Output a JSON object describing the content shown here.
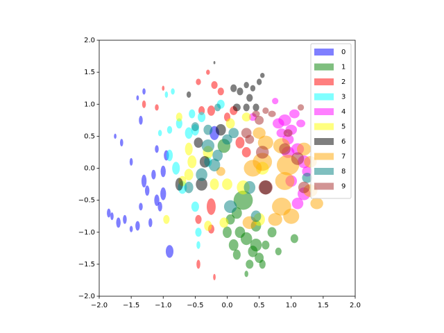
{
  "chart_data": {
    "type": "scatter",
    "alpha": 0.5,
    "legend": "upper right",
    "xlim": [
      -2,
      2
    ],
    "ylim": [
      -2,
      2
    ],
    "xticks": [
      {
        "value": -2,
        "label": "−2.0"
      },
      {
        "value": -1.5,
        "label": "−1.5"
      },
      {
        "value": -1,
        "label": "−1.0"
      },
      {
        "value": -0.5,
        "label": "−0.5"
      },
      {
        "value": 0,
        "label": "0.0"
      },
      {
        "value": 0.5,
        "label": "0.5"
      },
      {
        "value": 1,
        "label": "1.0"
      },
      {
        "value": 1.5,
        "label": "1.5"
      },
      {
        "value": 2,
        "label": "2.0"
      }
    ],
    "yticks": [
      {
        "value": -2,
        "label": "−2.0"
      },
      {
        "value": -1.5,
        "label": "−1.5"
      },
      {
        "value": -1,
        "label": "−1.0"
      },
      {
        "value": -0.5,
        "label": "−0.5"
      },
      {
        "value": 0,
        "label": "0.0"
      },
      {
        "value": 0.5,
        "label": "0.5"
      },
      {
        "value": 1,
        "label": "1.0"
      },
      {
        "value": 1.5,
        "label": "1.5"
      },
      {
        "value": 2,
        "label": "2.0"
      }
    ],
    "series": [
      {
        "name": "0",
        "color": "#0000ff",
        "x": [
          -1.85,
          -1.8,
          -1.7,
          -1.6,
          -1.5,
          -1.4,
          -1.35,
          -1.3,
          -1.25,
          -1.2,
          -1.1,
          -1.05,
          -1.0,
          -0.9,
          -1.1,
          -1.0,
          -1.35,
          -1.4,
          -1.3,
          -0.2,
          -1.65,
          -1.75,
          -1.5,
          -0.95,
          -1.15
        ],
        "y": [
          -0.7,
          -0.75,
          -0.85,
          -0.8,
          -0.95,
          -0.9,
          -0.6,
          -0.2,
          -0.35,
          -0.85,
          -0.5,
          -0.6,
          -0.4,
          -1.3,
          0.3,
          -0.05,
          0.75,
          1.1,
          1.2,
          0.55,
          0.4,
          0.5,
          0.1,
          0.2,
          -0.1
        ],
        "widths": [
          0.06,
          0.05,
          0.07,
          0.06,
          0.05,
          0.07,
          0.06,
          0.08,
          0.07,
          0.06,
          0.08,
          0.07,
          0.09,
          0.12,
          0.06,
          0.08,
          0.06,
          0.04,
          0.05,
          0.15,
          0.05,
          0.04,
          0.05,
          0.08,
          0.07
        ],
        "heights": [
          0.14,
          0.12,
          0.16,
          0.14,
          0.1,
          0.15,
          0.12,
          0.2,
          0.16,
          0.14,
          0.18,
          0.15,
          0.2,
          0.2,
          0.12,
          0.18,
          0.14,
          0.08,
          0.1,
          0.22,
          0.12,
          0.08,
          0.12,
          0.16,
          0.15
        ]
      },
      {
        "name": "1",
        "color": "#008000",
        "x": [
          0.3,
          0.2,
          0.4,
          0.5,
          0.35,
          0.15,
          0.05,
          0.1,
          0.6,
          0.7,
          0.8,
          1.05,
          0.45,
          0.25,
          -0.05,
          0.3,
          0.55,
          0.15,
          0.0,
          0.45
        ],
        "y": [
          -1.1,
          -1.0,
          -1.3,
          -1.4,
          -1.5,
          -0.7,
          -0.8,
          -1.2,
          -1.2,
          -1.0,
          -1.3,
          -1.1,
          -1.2,
          -0.5,
          0.35,
          -1.65,
          -1.5,
          -1.35,
          -1.0,
          -0.9
        ],
        "widths": [
          0.18,
          0.16,
          0.15,
          0.14,
          0.12,
          0.16,
          0.14,
          0.15,
          0.12,
          0.14,
          0.1,
          0.12,
          0.18,
          0.3,
          0.2,
          0.06,
          0.1,
          0.12,
          0.14,
          0.16
        ],
        "heights": [
          0.2,
          0.18,
          0.18,
          0.16,
          0.14,
          0.18,
          0.16,
          0.18,
          0.14,
          0.16,
          0.12,
          0.14,
          0.2,
          0.3,
          0.22,
          0.1,
          0.14,
          0.16,
          0.18,
          0.18
        ]
      },
      {
        "name": "2",
        "color": "#ff0000",
        "x": [
          -0.3,
          -0.45,
          -0.2,
          -0.1,
          -0.25,
          -0.4,
          -1.3,
          -1.1,
          0.0,
          0.2,
          0.3,
          -0.45,
          -0.25,
          -0.45,
          -0.2,
          -0.25,
          0.1,
          -1.0
        ],
        "y": [
          1.5,
          1.35,
          1.3,
          1.2,
          0.9,
          0.9,
          1.0,
          0.95,
          0.8,
          0.4,
          0.25,
          -0.8,
          -0.95,
          -1.5,
          -1.7,
          -0.6,
          0.9,
          1.25
        ],
        "widths": [
          0.06,
          0.08,
          0.1,
          0.1,
          0.12,
          0.1,
          0.06,
          0.06,
          0.1,
          0.14,
          0.14,
          0.1,
          0.1,
          0.06,
          0.04,
          0.14,
          0.12,
          0.04
        ],
        "heights": [
          0.08,
          0.1,
          0.12,
          0.12,
          0.16,
          0.14,
          0.12,
          0.1,
          0.14,
          0.18,
          0.16,
          0.14,
          0.14,
          0.14,
          0.1,
          0.26,
          0.14,
          0.08
        ]
      },
      {
        "name": "3",
        "color": "#00ffff",
        "x": [
          -0.9,
          -0.75,
          -0.6,
          -0.55,
          -0.4,
          -0.9,
          -0.8,
          -0.7,
          -0.5,
          -0.45,
          -1.05,
          -0.95,
          -0.85,
          -0.5,
          -0.1,
          -0.45,
          -0.3
        ],
        "y": [
          0.6,
          0.7,
          0.55,
          0.85,
          0.8,
          0.2,
          0.0,
          -0.3,
          -0.6,
          -1.0,
          0.55,
          1.15,
          1.2,
          0.6,
          1.0,
          -1.2,
          0.1
        ],
        "widths": [
          0.08,
          0.1,
          0.12,
          0.1,
          0.12,
          0.1,
          0.12,
          0.14,
          0.12,
          0.1,
          0.06,
          0.05,
          0.06,
          0.12,
          0.12,
          0.06,
          0.12
        ],
        "heights": [
          0.12,
          0.16,
          0.18,
          0.14,
          0.16,
          0.18,
          0.2,
          0.2,
          0.16,
          0.14,
          0.1,
          0.1,
          0.1,
          0.18,
          0.14,
          0.12,
          0.16
        ]
      },
      {
        "name": "4",
        "color": "#ff00ff",
        "x": [
          0.8,
          0.9,
          1.0,
          0.85,
          1.05,
          0.95,
          1.1,
          1.2,
          1.25,
          1.0,
          1.2,
          1.1,
          0.4,
          0.75,
          1.15,
          0.95
        ],
        "y": [
          0.7,
          0.75,
          0.6,
          0.55,
          0.85,
          0.45,
          0.3,
          0.1,
          -0.05,
          -0.2,
          -0.4,
          -0.55,
          0.8,
          1.05,
          0.7,
          0.25
        ],
        "widths": [
          0.18,
          0.2,
          0.18,
          0.16,
          0.16,
          0.18,
          0.2,
          0.2,
          0.16,
          0.18,
          0.2,
          0.18,
          0.12,
          0.1,
          0.14,
          0.2
        ],
        "heights": [
          0.16,
          0.18,
          0.16,
          0.14,
          0.14,
          0.16,
          0.18,
          0.2,
          0.16,
          0.18,
          0.2,
          0.18,
          0.12,
          0.1,
          0.12,
          0.18
        ]
      },
      {
        "name": "5",
        "color": "#ffff00",
        "x": [
          -0.6,
          -0.55,
          -0.6,
          -0.7,
          -0.3,
          -0.2,
          0.0,
          -0.05,
          -0.3,
          -0.95,
          0.25,
          0.05,
          0.3,
          -0.75,
          0.55,
          0.5
        ],
        "y": [
          0.3,
          0.1,
          -0.1,
          -0.2,
          0.25,
          -0.25,
          -0.25,
          -0.85,
          -0.9,
          -0.8,
          -0.3,
          0.7,
          0.8,
          0.8,
          0.0,
          -0.8
        ],
        "widths": [
          0.12,
          0.14,
          0.14,
          0.12,
          0.16,
          0.14,
          0.16,
          0.14,
          0.12,
          0.1,
          0.2,
          0.14,
          0.14,
          0.1,
          0.2,
          0.18
        ],
        "heights": [
          0.2,
          0.2,
          0.18,
          0.16,
          0.2,
          0.18,
          0.18,
          0.16,
          0.16,
          0.14,
          0.22,
          0.16,
          0.14,
          0.14,
          0.2,
          0.2
        ]
      },
      {
        "name": "6",
        "color": "#000000",
        "x": [
          0.1,
          0.2,
          0.3,
          0.4,
          0.5,
          0.55,
          0.35,
          0.15,
          0.3,
          0.45,
          -0.4,
          -0.75,
          -0.45,
          -0.1,
          -0.35,
          0.6,
          -0.6,
          -0.2
        ],
        "y": [
          1.25,
          1.2,
          1.3,
          1.25,
          1.35,
          1.45,
          1.1,
          0.95,
          0.95,
          0.95,
          -0.25,
          -0.25,
          0.4,
          0.6,
          0.1,
          -0.3,
          1.15,
          1.65
        ],
        "widths": [
          0.1,
          0.1,
          0.08,
          0.08,
          0.08,
          0.07,
          0.1,
          0.12,
          0.1,
          0.1,
          0.18,
          0.12,
          0.14,
          0.16,
          0.16,
          0.2,
          0.07,
          0.03
        ],
        "heights": [
          0.12,
          0.12,
          0.1,
          0.1,
          0.1,
          0.08,
          0.12,
          0.12,
          0.12,
          0.12,
          0.2,
          0.2,
          0.16,
          0.18,
          0.18,
          0.22,
          0.1,
          0.05
        ]
      },
      {
        "name": "7",
        "color": "#ffa500",
        "x": [
          0.85,
          1.0,
          1.4,
          1.3,
          0.95,
          0.9,
          0.55,
          0.4,
          0.85,
          0.6,
          1.3,
          0.35,
          0.75,
          -0.1,
          0.5,
          1.2
        ],
        "y": [
          -0.6,
          -0.75,
          -0.55,
          -0.35,
          0.05,
          -0.2,
          0.1,
          0.0,
          0.35,
          0.4,
          0.1,
          -0.85,
          -0.8,
          -0.05,
          0.55,
          0.3
        ],
        "widths": [
          0.3,
          0.25,
          0.2,
          0.22,
          0.35,
          0.3,
          0.3,
          0.28,
          0.26,
          0.24,
          0.2,
          0.22,
          0.22,
          0.14,
          0.2,
          0.22
        ],
        "heights": [
          0.28,
          0.24,
          0.18,
          0.2,
          0.32,
          0.28,
          0.28,
          0.26,
          0.24,
          0.22,
          0.18,
          0.2,
          0.2,
          0.14,
          0.18,
          0.2
        ]
      },
      {
        "name": "8",
        "color": "#008080",
        "x": [
          -0.6,
          -0.4,
          -0.3,
          -0.15,
          -0.2,
          0.0,
          0.1,
          -0.3,
          -0.5,
          0.35,
          0.05,
          0.45,
          -0.15,
          1.25
        ],
        "y": [
          -0.3,
          -0.1,
          0.35,
          0.2,
          0.05,
          0.45,
          0.55,
          0.6,
          0.65,
          -0.3,
          -0.6,
          -0.75,
          0.95,
          -0.15
        ],
        "widths": [
          0.14,
          0.18,
          0.2,
          0.16,
          0.18,
          0.16,
          0.16,
          0.14,
          0.12,
          0.18,
          0.2,
          0.16,
          0.1,
          0.16
        ],
        "heights": [
          0.18,
          0.2,
          0.2,
          0.18,
          0.2,
          0.16,
          0.16,
          0.16,
          0.14,
          0.2,
          0.2,
          0.18,
          0.12,
          0.16
        ]
      },
      {
        "name": "9",
        "color": "#a52a2a",
        "x": [
          0.3,
          0.5,
          0.6,
          0.7,
          0.9,
          1.1,
          1.2,
          0.6,
          0.35,
          0.95,
          1.15,
          0.45,
          0.55
        ],
        "y": [
          0.55,
          0.75,
          0.9,
          0.85,
          0.3,
          0.15,
          -0.3,
          -0.3,
          0.45,
          0.55,
          0.95,
          0.85,
          0.25
        ],
        "widths": [
          0.16,
          0.14,
          0.1,
          0.12,
          0.18,
          0.2,
          0.18,
          0.22,
          0.14,
          0.14,
          0.1,
          0.12,
          0.2
        ],
        "heights": [
          0.16,
          0.14,
          0.1,
          0.1,
          0.18,
          0.2,
          0.18,
          0.22,
          0.14,
          0.12,
          0.1,
          0.1,
          0.2
        ]
      }
    ]
  }
}
